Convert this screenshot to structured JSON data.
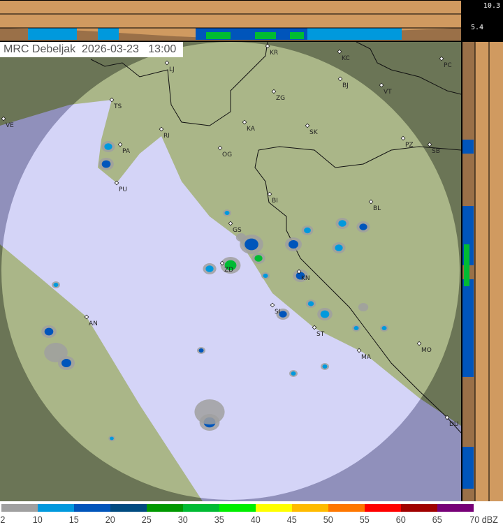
{
  "header": {
    "station": "MRC Debeljak",
    "date": "2026-03-23",
    "time": "13:00"
  },
  "cross_section": {
    "height_top_km": "10.3",
    "height_mid_km": "5.4"
  },
  "cities": [
    "LJ",
    "KR",
    "KC",
    "PC",
    "ZG",
    "BJ",
    "VT",
    "TS",
    "VE",
    "KA",
    "SK",
    "PZ",
    "SB",
    "RI",
    "OG",
    "PA",
    "PU",
    "BI",
    "BL",
    "GS",
    "ZD",
    "KN",
    "SI",
    "ST",
    "MA",
    "MO",
    "AN",
    "DU"
  ],
  "legend": {
    "unit": "dBZ",
    "ticks": [
      "2",
      "10",
      "15",
      "20",
      "25",
      "30",
      "35",
      "40",
      "45",
      "50",
      "55",
      "60",
      "65",
      "70"
    ],
    "colors": [
      "#a0a0a0",
      "#0099dd",
      "#0055bb",
      "#004b80",
      "#009900",
      "#00bb33",
      "#00ee00",
      "#ffff00",
      "#ffbb00",
      "#ff7700",
      "#ff0000",
      "#a00000",
      "#770077"
    ]
  },
  "colors": {
    "land": "#b8c890",
    "sea": "#c4c4f4",
    "sea_outside": "#7f80a8",
    "panel": "#d09a60",
    "panel_dark": "#9a7048"
  }
}
